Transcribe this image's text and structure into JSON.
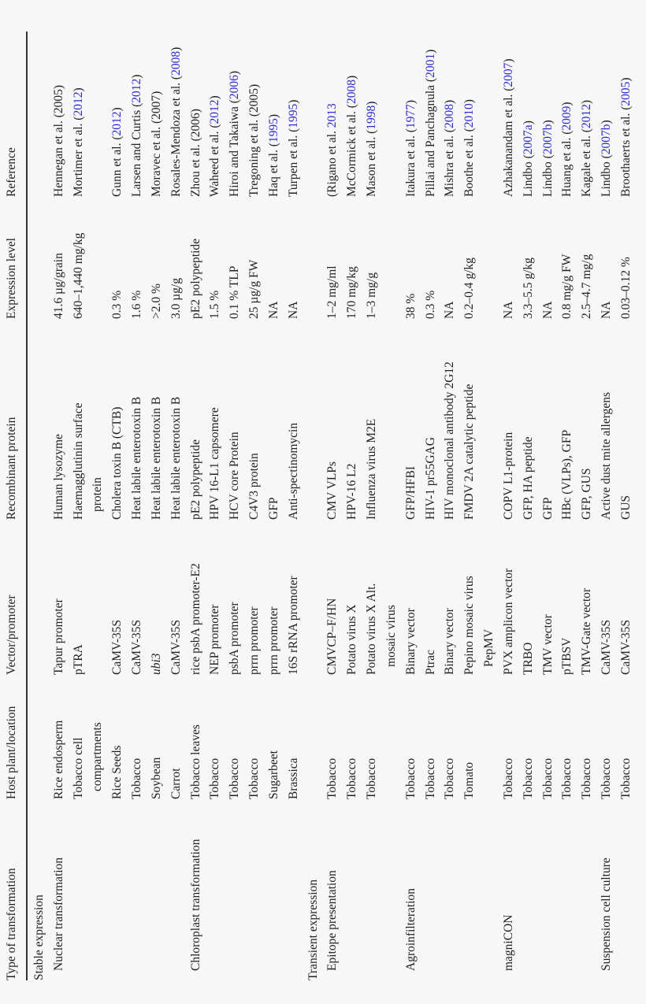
{
  "headers": [
    "Type of transformation",
    "Host plant/location",
    "Vector/promoter",
    "Recombinant protein",
    "Expression level",
    "Reference"
  ],
  "link_color": "#2a2ad0",
  "sections": [
    {
      "label": "Stable expression",
      "groups": [
        {
          "label": "Nuclear transformation",
          "rows": [
            {
              "host": [
                "Rice endosperm"
              ],
              "vector": [
                "Tapur promoter"
              ],
              "protein": [
                "Human lysozyme"
              ],
              "expression": "41.6 µg/grain",
              "ref": {
                "pre": "Hennegan et al. (2005)",
                "year": "",
                "post": ""
              }
            },
            {
              "host": [
                "Tobacco cell",
                "compartments"
              ],
              "vector": [
                "pTRA"
              ],
              "protein": [
                "Haemagglutinin surface",
                "protein"
              ],
              "expression": "640–1,440 mg/kg",
              "ref": {
                "pre": "Mortimer et al. (",
                "year": "2012",
                "post": ")"
              }
            },
            {
              "host": [
                "Rice Seeds"
              ],
              "vector": [
                "CaMV-35S"
              ],
              "protein": [
                "Cholera toxin B (CTB)"
              ],
              "expression": "0.3 %",
              "ref": {
                "pre": "Gunn et al. (",
                "year": "2012",
                "post": ")"
              }
            },
            {
              "host": [
                "Tobacco"
              ],
              "vector": [
                "CaMV-35S"
              ],
              "protein": [
                "Heat labile enterotoxin B"
              ],
              "expression": "1.6 %",
              "ref": {
                "pre": "Larsen and Curtis (",
                "year": "2012",
                "post": ")"
              }
            },
            {
              "host": [
                "Soybean"
              ],
              "vector": [
                "ubi3"
              ],
              "vector_italic": true,
              "protein": [
                "Heat labile enterotoxin B"
              ],
              "expression": ">2.0 %",
              "ref": {
                "pre": "Moravec et al. (2007)",
                "year": "",
                "post": ""
              }
            },
            {
              "host": [
                "Carrot"
              ],
              "vector": [
                "CaMV-35S"
              ],
              "protein": [
                "Heat labile enterotoxin B"
              ],
              "expression": "3.0 µg/g",
              "ref": {
                "pre": "Rosales-Mendoza et al. (",
                "year": "2008",
                "post": ")"
              }
            }
          ]
        },
        {
          "label": "Chloroplast transformation",
          "rows": [
            {
              "host": [
                "Tobacco leaves"
              ],
              "vector": [
                "rice psbA promoter-E2"
              ],
              "protein": [
                "pE2 polypeptide"
              ],
              "expression": "pE2 polypeptide",
              "ref": {
                "pre": "Zhou et al. (2006)",
                "year": "",
                "post": ""
              }
            },
            {
              "host": [
                "Tobacco"
              ],
              "vector": [
                "NEP promoter"
              ],
              "protein": [
                "HPV 16-L1 capsomere"
              ],
              "expression": "1.5 %",
              "ref": {
                "pre": "Waheed et al. (",
                "year": "2012",
                "post": ")"
              }
            },
            {
              "host": [
                "Tobacco"
              ],
              "vector": [
                "psbA promoter"
              ],
              "protein": [
                "HCV core Protein"
              ],
              "expression": "0.1 % TLP",
              "ref": {
                "pre": "Hiroi and Takaiwa (",
                "year": "2006",
                "post": ")"
              }
            },
            {
              "host": [
                "Tobacco"
              ],
              "vector": [
                "prrn promoter"
              ],
              "protein": [
                "C4V3 protein"
              ],
              "expression": "25 µg/g FW",
              "ref": {
                "pre": "Tregoning et al. (2005)",
                "year": "",
                "post": ""
              }
            },
            {
              "host": [
                "Sugarbeet"
              ],
              "vector": [
                "prrn promoter"
              ],
              "protein": [
                "GFP"
              ],
              "expression": "NA",
              "ref": {
                "pre": "Haq et al. (",
                "year": "1995",
                "post": ")"
              }
            },
            {
              "host": [
                "Brassica"
              ],
              "vector": [
                "16S rRNA promoter"
              ],
              "protein": [
                "Anti-spectinomycin"
              ],
              "expression": "NA",
              "ref": {
                "pre": "Turpen et al. (",
                "year": "1995",
                "post": ")"
              }
            }
          ]
        }
      ]
    },
    {
      "label": "Transient expression",
      "groups": [
        {
          "label": "Epitope presentation",
          "rows": [
            {
              "host": [
                "Tobacco"
              ],
              "vector": [
                "CMVCP–F/HN"
              ],
              "protein": [
                "CMV VLPs"
              ],
              "expression": "1–2 mg/ml",
              "ref": {
                "pre": "(Rigano et al. ",
                "year": "2013",
                "post": ""
              }
            },
            {
              "host": [
                "Tobacco"
              ],
              "vector": [
                "Potato virus X"
              ],
              "protein": [
                "HPV-16 L2"
              ],
              "expression": "170 mg/kg",
              "ref": {
                "pre": "McCormick et al. (",
                "year": "2008",
                "post": ")"
              }
            },
            {
              "host": [
                "Tobacco"
              ],
              "vector": [
                "Potato virus X Alt.",
                "mosaic virus"
              ],
              "protein": [
                "Influenza virus M2E"
              ],
              "expression": "1–3 mg/g",
              "ref": {
                "pre": "Mason et al. (",
                "year": "1998",
                "post": ")"
              }
            }
          ]
        },
        {
          "label": "Agroinfilteration",
          "rows": [
            {
              "host": [
                "Tobacco"
              ],
              "vector": [
                "Binary vector"
              ],
              "protein": [
                "GFP/HFBI"
              ],
              "expression": "38 %",
              "ref": {
                "pre": "Itakura et al. (",
                "year": "1977",
                "post": ")"
              }
            },
            {
              "host": [
                "Tobacco"
              ],
              "vector": [
                "Ptrac"
              ],
              "protein": [
                "HIV-1 pr55GAG"
              ],
              "expression": "0.3 %",
              "ref": {
                "pre": "Pillai and Panchagnula (",
                "year": "2001",
                "post": ")"
              }
            },
            {
              "host": [
                "Tobacco"
              ],
              "vector": [
                "Binary vector"
              ],
              "protein": [
                "HIV monoclonal antibody 2G12"
              ],
              "expression": "NA",
              "ref": {
                "pre": "Mishra et al. (",
                "year": "2008",
                "post": ")"
              }
            },
            {
              "host": [
                "Tomato"
              ],
              "vector": [
                "Pepino mosaic virus",
                "PepMV"
              ],
              "protein": [
                "FMDV 2A catalytic peptide"
              ],
              "expression": "0.2–0.4 g/kg",
              "ref": {
                "pre": "Boothe et al. (",
                "year": "2010",
                "post": ")"
              }
            }
          ]
        },
        {
          "label": "magniCON",
          "rows": [
            {
              "host": [
                "Tobacco"
              ],
              "vector": [
                "PVX amplicon vector"
              ],
              "protein": [
                "COPV L1-protein"
              ],
              "expression": "NA",
              "ref": {
                "pre": "Azhakanandam et al. (",
                "year": "2007",
                "post": ")"
              }
            },
            {
              "host": [
                "Tobacco"
              ],
              "vector": [
                "TRBO"
              ],
              "protein": [
                "GFP, HA peptide"
              ],
              "expression": "3.3–5.5 g/kg",
              "ref": {
                "pre": "Lindbo (",
                "year": "2007a",
                "post": ")"
              }
            },
            {
              "host": [
                "Tobacco"
              ],
              "vector": [
                "TMV vector"
              ],
              "protein": [
                "GFP"
              ],
              "expression": "NA",
              "ref": {
                "pre": "Lindbo (",
                "year": "2007b",
                "post": ")"
              }
            },
            {
              "host": [
                "Tobacco"
              ],
              "vector": [
                "pTBSV"
              ],
              "protein": [
                "HBc (VLPs), GFP"
              ],
              "expression": "0.8 mg/g FW",
              "ref": {
                "pre": "Huang et al. (",
                "year": "2009",
                "post": ")"
              }
            },
            {
              "host": [
                "Tobacco"
              ],
              "vector": [
                "TMV-Gate vector"
              ],
              "protein": [
                "GFP, GUS"
              ],
              "expression": "2.5–4.7 mg/g",
              "ref": {
                "pre": "Kagale et al. (",
                "year": "2012",
                "post": ")"
              }
            }
          ]
        },
        {
          "label": "Suspension cell culture",
          "rows": [
            {
              "host": [
                "Tobacco"
              ],
              "vector": [
                "CaMV-35S"
              ],
              "protein": [
                "Active dust mite allergens"
              ],
              "expression": "NA",
              "ref": {
                "pre": "Lindbo (",
                "year": "2007b",
                "post": ")"
              }
            },
            {
              "host": [
                "Tobacco"
              ],
              "vector": [
                "CaMV-35S"
              ],
              "protein": [
                "GUS"
              ],
              "expression": "0.03–0.12 %",
              "ref": {
                "pre": "Broothaerts et al. (",
                "year": "2005",
                "post": ")"
              }
            }
          ]
        }
      ]
    }
  ]
}
